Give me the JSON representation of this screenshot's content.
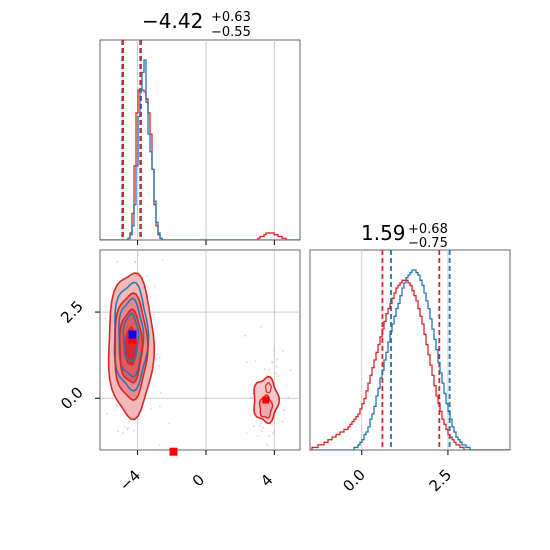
{
  "chart_data": {
    "type": "corner",
    "parameters": [
      {
        "title": {
          "value": "−4.42",
          "upper": "+0.63",
          "lower": "−0.55"
        },
        "range": [
          -6.2,
          5.5
        ],
        "ticks": [
          {
            "value": -4,
            "label": "−4"
          },
          {
            "value": 0,
            "label": "0"
          },
          {
            "value": 4,
            "label": "4"
          }
        ]
      },
      {
        "title": {
          "value": "1.59",
          "upper": "+0.68",
          "lower": "−0.75"
        },
        "range": [
          -1.5,
          4.3
        ],
        "ticks": [
          {
            "value": 0.0,
            "label": "0.0"
          },
          {
            "value": 2.5,
            "label": "2.5"
          }
        ]
      }
    ],
    "series": [
      {
        "color": "#1f77b4",
        "hist_1": {
          "edges_start": -6.2,
          "bin_width": 0.117,
          "counts": [
            0,
            0,
            0,
            0,
            0,
            0,
            0,
            0,
            0,
            0,
            0,
            0,
            0,
            0,
            1,
            3,
            8,
            20,
            42,
            70,
            85,
            95,
            102,
            78,
            60,
            50,
            40,
            22,
            10,
            4,
            1,
            0,
            0,
            0,
            0,
            0,
            0,
            0,
            0,
            0,
            0,
            0,
            0,
            0,
            0,
            0,
            0,
            0,
            0,
            0,
            0,
            0,
            0,
            0,
            0,
            0,
            0,
            0,
            0,
            0,
            0,
            0,
            0,
            0,
            0,
            0,
            0,
            0,
            0,
            0,
            0,
            0,
            0,
            0,
            0,
            0,
            0,
            0,
            0,
            0,
            0,
            0,
            0,
            0,
            0,
            0,
            0,
            0,
            0,
            0,
            0,
            0,
            0,
            0,
            0,
            0,
            0,
            0,
            0,
            0
          ]
        },
        "quantiles_1": [
          -4.9,
          -3.85
        ],
        "hist_2": {
          "edges_start": -1.5,
          "bin_width": 0.058,
          "counts": [
            0,
            0,
            0,
            0,
            0,
            0,
            0,
            0,
            0,
            0,
            0,
            0,
            0,
            0,
            0,
            0,
            0,
            0,
            0,
            0,
            0,
            0,
            1,
            1,
            2,
            3,
            4,
            6,
            7,
            9,
            12,
            14,
            17,
            21,
            24,
            28,
            31,
            35,
            38,
            42,
            46,
            49,
            52,
            55,
            57,
            60,
            63,
            65,
            67,
            68,
            69,
            70,
            70,
            69,
            68,
            66,
            64,
            61,
            58,
            55,
            51,
            47,
            43,
            39,
            34,
            30,
            26,
            22,
            18,
            15,
            12,
            9,
            7,
            5,
            4,
            3,
            2,
            2,
            1,
            1,
            0,
            0,
            0,
            0,
            0,
            0,
            0,
            0,
            0,
            0,
            0,
            0,
            0,
            0,
            0,
            0,
            0,
            0,
            0,
            0
          ]
        },
        "quantiles_2": [
          0.85,
          2.55
        ],
        "point": {
          "x": -4.3,
          "y": 1.85
        },
        "contour_center": {
          "x": -4.4,
          "y": 1.55
        },
        "contour_sigmas": {
          "x": 0.55,
          "y": 0.85
        }
      },
      {
        "color": "#d62728",
        "hist_1": {
          "edges_start": -6.2,
          "bin_width": 0.117,
          "counts": [
            0,
            0,
            0,
            0,
            0,
            0,
            0,
            0,
            0,
            0,
            0,
            0,
            0,
            0,
            1,
            4,
            15,
            42,
            72,
            85,
            85,
            85,
            84,
            80,
            72,
            60,
            40,
            20,
            8,
            3,
            1,
            0,
            0,
            0,
            0,
            0,
            0,
            0,
            0,
            0,
            0,
            0,
            0,
            0,
            0,
            0,
            0,
            0,
            0,
            0,
            0,
            0,
            0,
            0,
            0,
            0,
            0,
            0,
            0,
            0,
            0,
            0,
            0,
            0,
            0,
            0,
            0,
            0,
            0,
            0,
            0,
            0,
            0,
            0,
            0,
            0,
            0,
            0,
            0,
            1,
            2,
            2,
            3,
            4,
            4,
            4,
            4,
            3,
            3,
            2,
            2,
            1,
            1,
            0,
            0,
            0,
            0,
            0,
            0,
            0
          ]
        },
        "quantiles_1": [
          -4.85,
          -3.8
        ],
        "hist_2": {
          "edges_start": -1.5,
          "bin_width": 0.058,
          "counts": [
            0,
            1,
            1,
            1,
            2,
            2,
            2,
            3,
            3,
            4,
            4,
            5,
            5,
            6,
            6,
            7,
            7,
            8,
            8,
            9,
            10,
            11,
            12,
            13,
            14,
            16,
            18,
            20,
            23,
            26,
            29,
            32,
            35,
            38,
            41,
            44,
            47,
            50,
            53,
            55,
            57,
            59,
            61,
            63,
            64,
            65,
            66,
            66,
            66,
            65,
            64,
            62,
            60,
            58,
            55,
            52,
            49,
            45,
            41,
            37,
            33,
            29,
            25,
            21,
            18,
            15,
            12,
            10,
            8,
            6,
            5,
            4,
            3,
            2,
            2,
            1,
            1,
            0,
            0,
            0,
            0,
            0,
            0,
            0,
            0,
            0,
            0,
            0,
            0,
            0,
            0,
            0,
            0,
            0,
            0,
            0,
            0,
            0,
            0,
            0
          ]
        },
        "quantiles_2": [
          0.6,
          2.25
        ],
        "point": {
          "x": -4.3,
          "y": 1.7
        },
        "contour_center": {
          "x": -4.4,
          "y": 1.4
        },
        "contour_sigmas": {
          "x": 0.6,
          "y": 0.95
        },
        "secondary_mode": {
          "x": 3.5,
          "y": -0.05,
          "sx": 0.45,
          "sy": 0.4
        },
        "marker": {
          "x": -1.9,
          "y": -1.55
        }
      }
    ],
    "grid": true,
    "legend": "none"
  }
}
